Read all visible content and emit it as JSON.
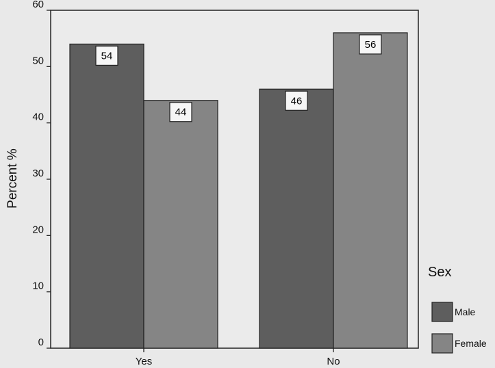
{
  "chart_data": {
    "type": "bar",
    "categories": [
      "Yes",
      "No"
    ],
    "series": [
      {
        "name": "Male",
        "values": [
          54,
          46
        ],
        "color": "#5e5e5e"
      },
      {
        "name": "Female",
        "values": [
          44,
          56
        ],
        "color": "#858585"
      }
    ],
    "data_labels": [
      [
        "54",
        "44"
      ],
      [
        "46",
        "56"
      ]
    ],
    "ylabel": "Percent %",
    "xlabel": "",
    "ylim": [
      0,
      60
    ],
    "yticks": [
      0,
      10,
      20,
      30,
      40,
      50,
      60
    ],
    "legend_title": "Sex",
    "legend_position": "right"
  }
}
